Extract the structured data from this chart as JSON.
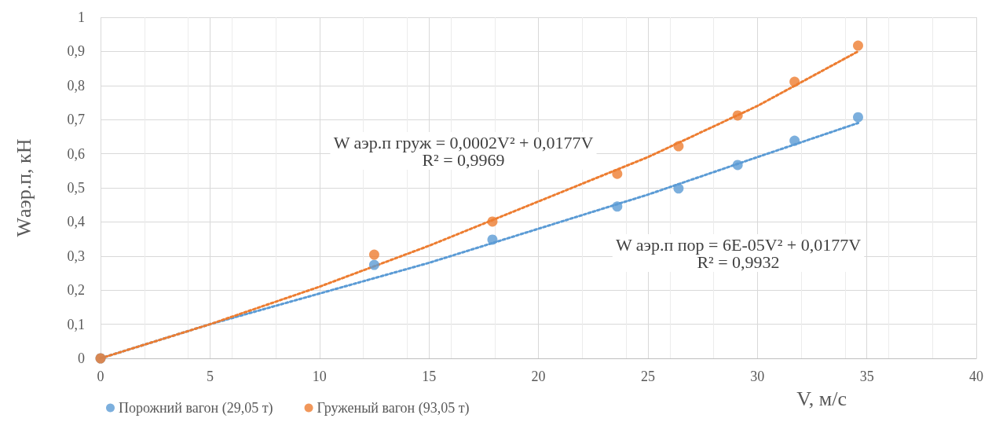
{
  "chart_data": {
    "type": "scatter",
    "xlabel": "V, м/с",
    "ylabel": "Wаэр.п, кН",
    "xlim": [
      0,
      40
    ],
    "xticks": [
      0,
      5,
      10,
      15,
      20,
      25,
      30,
      35,
      40
    ],
    "ylim": [
      0,
      1
    ],
    "yticks": [
      0,
      {
        "value": 0.1,
        "label": "0,1"
      },
      {
        "value": 0.2,
        "label": "0,2"
      },
      {
        "value": 0.3,
        "label": "0,3"
      },
      {
        "value": 0.4,
        "label": "0,4"
      },
      {
        "value": 0.5,
        "label": "0,5"
      },
      {
        "value": 0.6,
        "label": "0,6"
      },
      {
        "value": 0.7,
        "label": "0,7"
      },
      {
        "value": 0.8,
        "label": "0,8"
      },
      {
        "value": 0.9,
        "label": "0,9"
      },
      1
    ],
    "grid": true,
    "legend": "bottom left",
    "marker": "circle",
    "series": [
      {
        "name": "Порожний вагон (29,05 т)",
        "color": "#5b9bd5",
        "x": [
          0,
          12.5,
          17.9,
          23.6,
          26.4,
          29.1,
          31.7,
          34.6
        ],
        "values": [
          0,
          0.274,
          0.348,
          0.445,
          0.498,
          0.567,
          0.638,
          0.707
        ]
      },
      {
        "name": "Груженый вагон (93,05 т)",
        "color": "#ed7d31",
        "x": [
          0,
          12.5,
          17.9,
          23.6,
          26.4,
          29.1,
          31.7,
          34.6
        ],
        "values": [
          0,
          0.304,
          0.401,
          0.541,
          0.622,
          0.712,
          0.811,
          0.917
        ]
      },
      {
        "type": "line",
        "line_style": "dotted",
        "marker": "none",
        "color": "#5b9bd5",
        "x": [
          0,
          5,
          10,
          15,
          20,
          25,
          30,
          34.6
        ],
        "values": [
          0,
          0.1,
          0.19,
          0.28,
          0.38,
          0.48,
          0.59,
          0.69
        ]
      },
      {
        "type": "line",
        "line_style": "dotted",
        "marker": "none",
        "color": "#ed7d31",
        "x": [
          0,
          5,
          10,
          15,
          20,
          25,
          30,
          34.6
        ],
        "values": [
          0,
          0.1,
          0.21,
          0.33,
          0.46,
          0.59,
          0.74,
          0.9
        ]
      }
    ],
    "annotations": [
      "W аэр.п груж = 0,0002V² + 0,0177V\nR² = 0,9969",
      "W аэр.п пор = 6E-05V² + 0,0177V\nR² = 0,9932"
    ]
  }
}
